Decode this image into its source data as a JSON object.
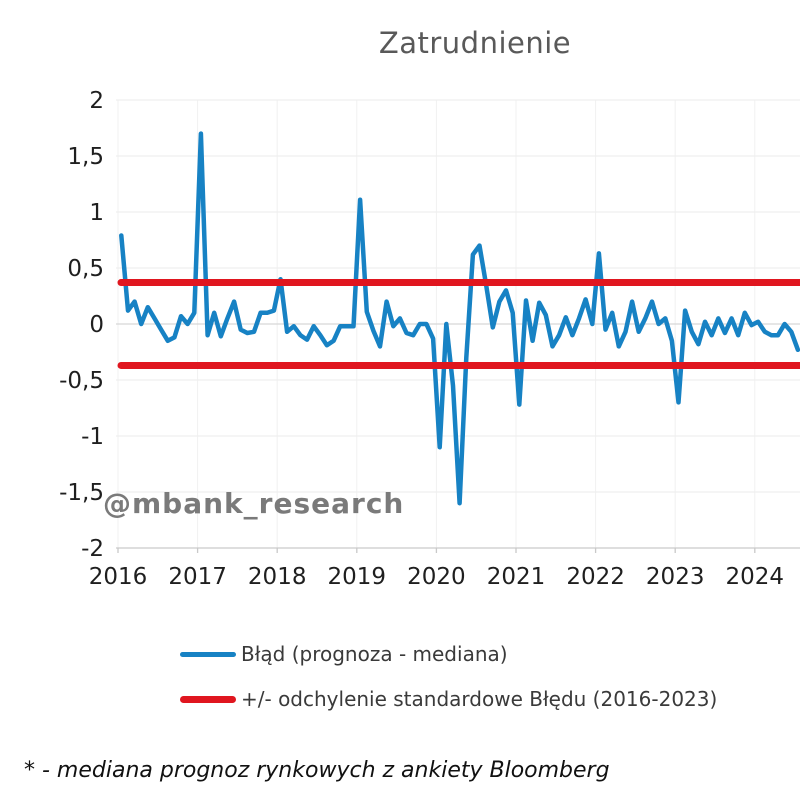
{
  "page": {
    "title": "Zatrudnienie"
  },
  "chart_data": {
    "type": "line",
    "title": "Zatrudnienie",
    "xlabel": "",
    "ylabel": "",
    "ylim": [
      -2,
      2
    ],
    "grid": true,
    "legend_position": "bottom-left",
    "x_tick_values": [
      2016,
      2017,
      2018,
      2019,
      2020,
      2021,
      2022,
      2023,
      2024
    ],
    "x_tick_labels": [
      "2016",
      "2017",
      "2018",
      "2019",
      "2020",
      "2021",
      "2022",
      "2023",
      "2024"
    ],
    "y_tick_values": [
      2,
      1.5,
      1,
      0.5,
      0,
      -0.5,
      -1,
      -1.5,
      -2
    ],
    "y_tick_labels": [
      "2",
      "1,5",
      "1",
      "0,5",
      "0",
      "-0,5",
      "-1",
      "-1,5",
      "-2"
    ],
    "series": [
      {
        "name": "Błąd (prognoza - mediana)",
        "type": "line",
        "color": "#1782c4",
        "frequency": "monthly",
        "start": "2016-01",
        "end": "2024-07",
        "values": [
          0.79,
          0.12,
          0.2,
          0.0,
          0.15,
          0.05,
          -0.05,
          -0.15,
          -0.12,
          0.07,
          0.0,
          0.1,
          1.7,
          -0.1,
          0.1,
          -0.11,
          0.05,
          0.2,
          -0.05,
          -0.08,
          -0.07,
          0.1,
          0.1,
          0.12,
          0.4,
          -0.07,
          -0.02,
          -0.1,
          -0.14,
          -0.02,
          -0.1,
          -0.19,
          -0.15,
          -0.02,
          -0.02,
          -0.02,
          1.11,
          0.11,
          -0.06,
          -0.2,
          0.2,
          -0.02,
          0.05,
          -0.08,
          -0.1,
          0.0,
          0.0,
          -0.13,
          -1.1,
          0.0,
          -0.55,
          -1.6,
          -0.3,
          0.62,
          0.7,
          0.35,
          -0.03,
          0.2,
          0.3,
          0.1,
          -0.72,
          0.21,
          -0.15,
          0.19,
          0.08,
          -0.2,
          -0.1,
          0.06,
          -0.1,
          0.05,
          0.22,
          0.0,
          0.63,
          -0.05,
          0.1,
          -0.2,
          -0.07,
          0.2,
          -0.07,
          0.05,
          0.2,
          0.0,
          0.05,
          -0.15,
          -0.7,
          0.12,
          -0.07,
          -0.18,
          0.02,
          -0.1,
          0.05,
          -0.08,
          0.05,
          -0.1,
          0.1,
          -0.01,
          0.02,
          -0.07,
          -0.1,
          -0.1,
          0.0,
          -0.07,
          -0.23
        ]
      },
      {
        "name": "+/- odchylenie standardowe Błędu (2016-2023)",
        "type": "hline",
        "color": "#e0161f",
        "values": [
          0.37,
          -0.37
        ]
      }
    ],
    "watermark": "@mbank_research",
    "footnote": "* - mediana prognoz rynkowych z ankiety Bloomberg"
  }
}
